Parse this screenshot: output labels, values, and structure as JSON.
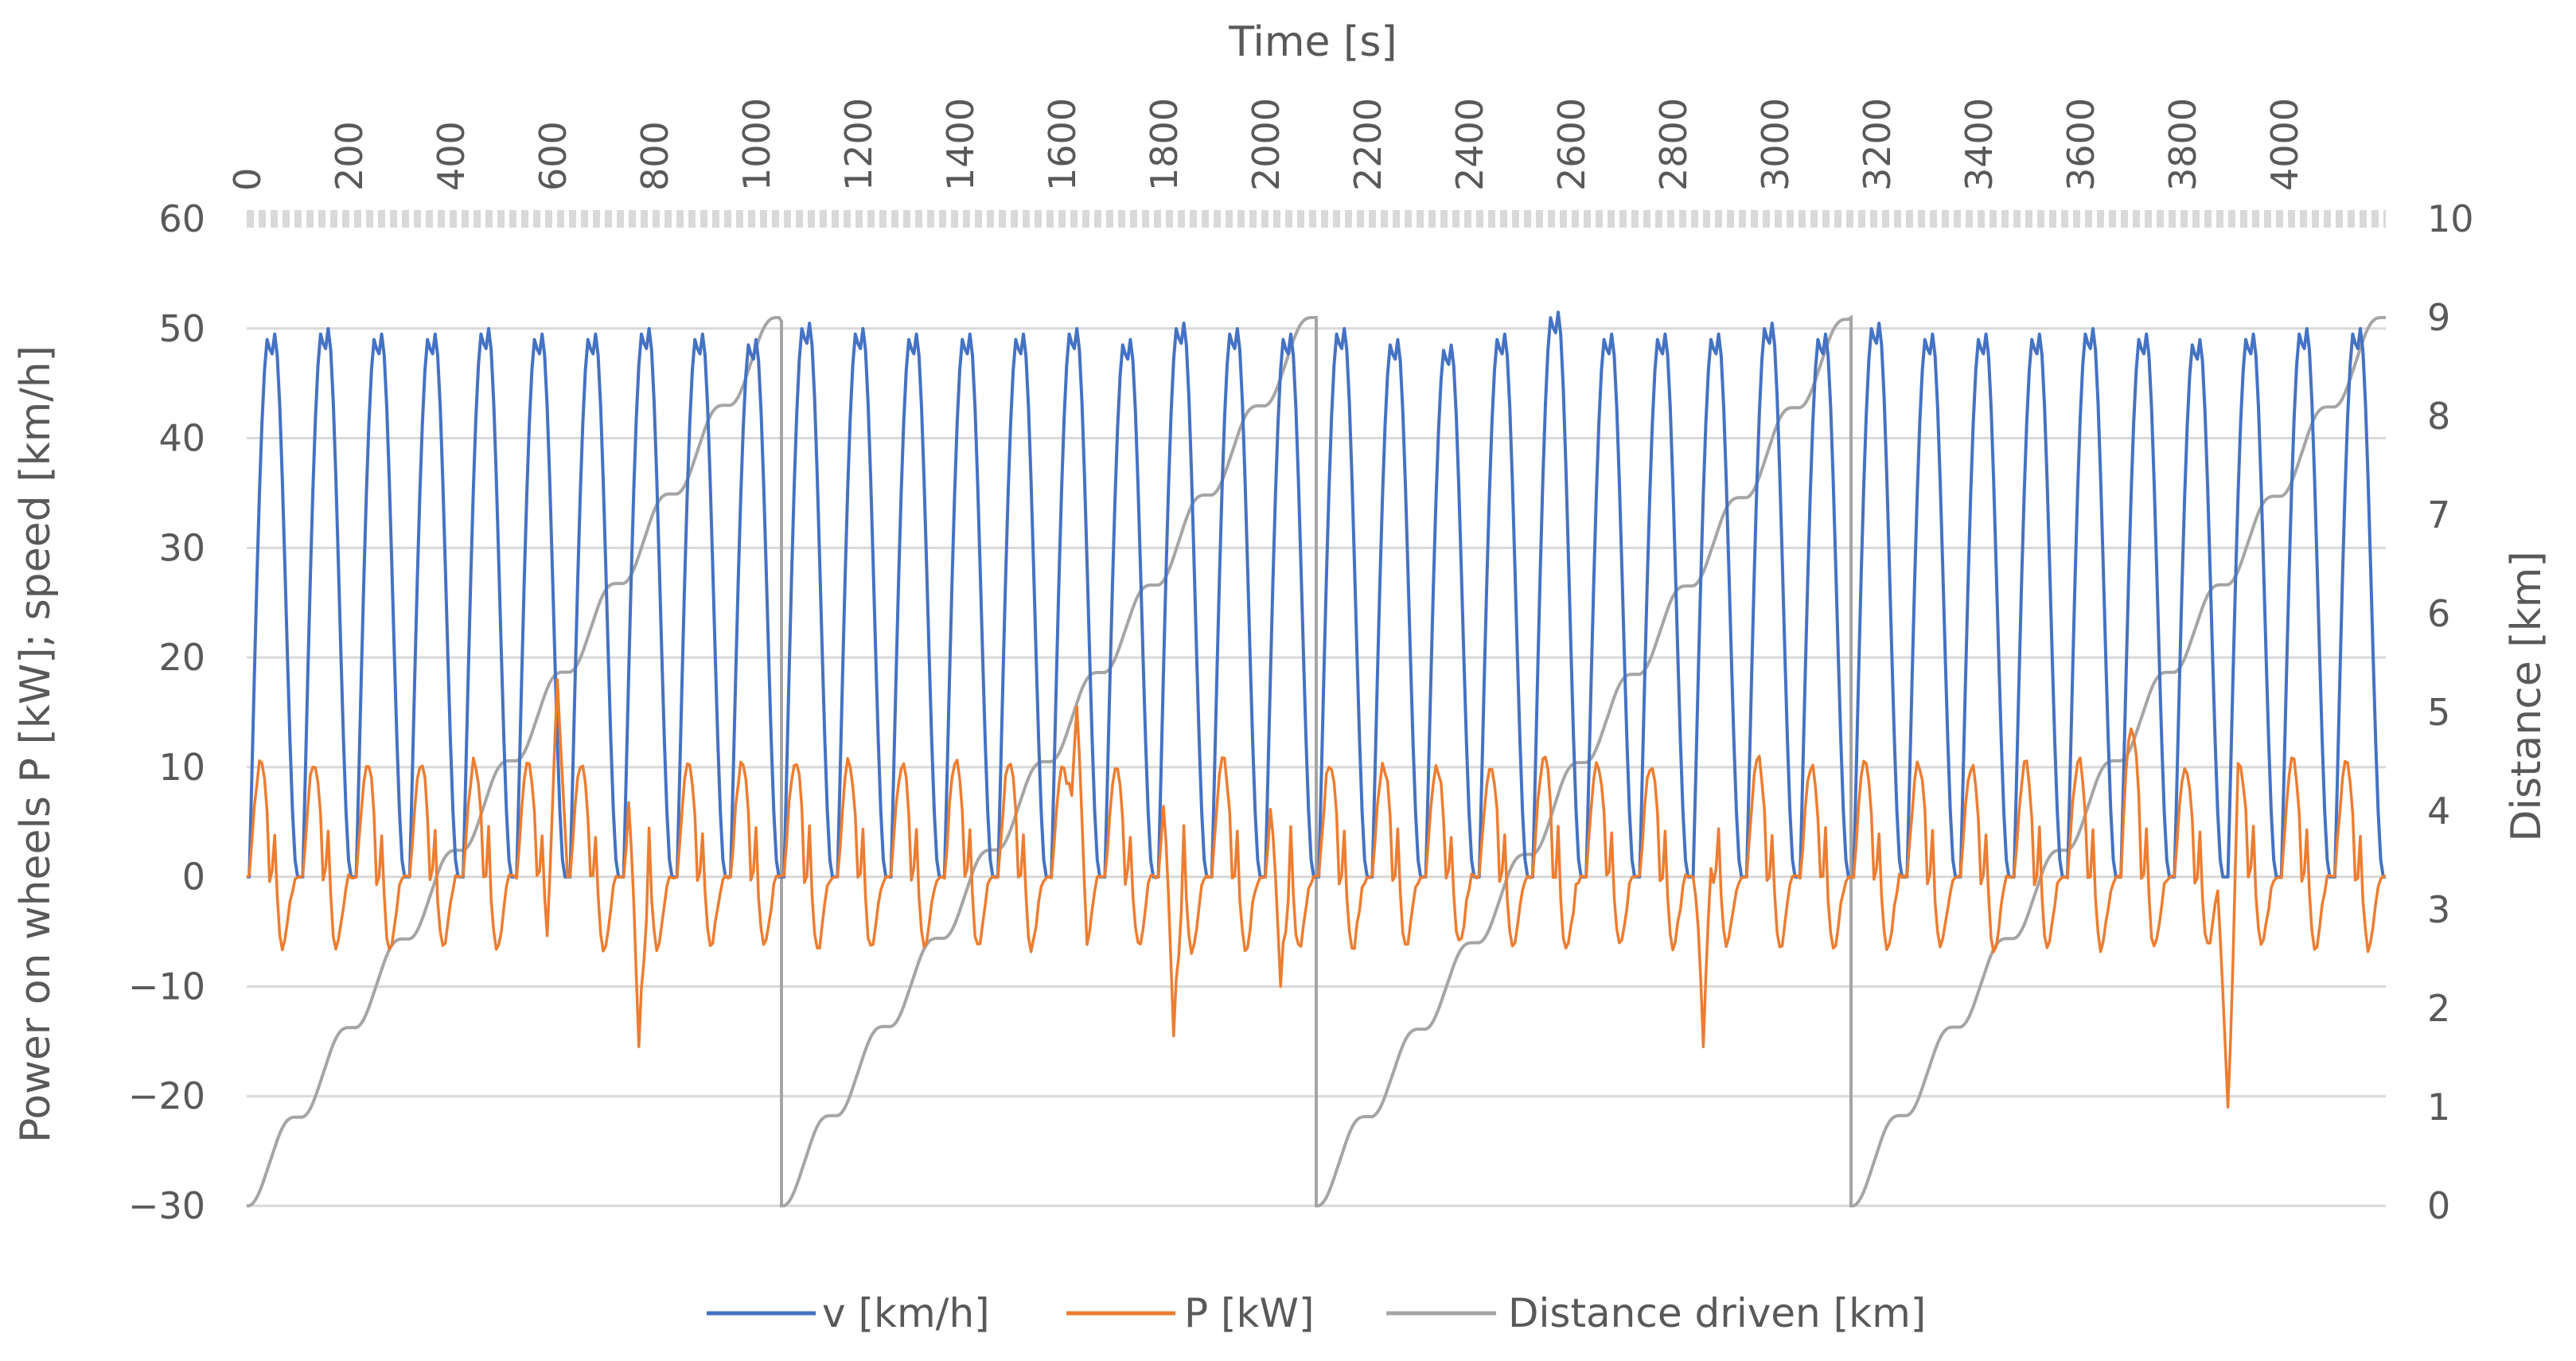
{
  "chart_data": {
    "type": "line",
    "title": "",
    "top_axis": {
      "label": "Time [s]",
      "range": [
        0,
        4200
      ],
      "ticks": [
        "0",
        "200",
        "400",
        "600",
        "800",
        "1000",
        "1200",
        "1400",
        "1600",
        "1800",
        "2000",
        "2200",
        "2400",
        "2600",
        "2800",
        "3000",
        "3200",
        "3400",
        "3600",
        "3800",
        "4000"
      ]
    },
    "y_left": {
      "label": "Power on wheels P [kW]; speed [km/h]",
      "range": [
        -30,
        60
      ],
      "ticks": [
        "60",
        "50",
        "40",
        "30",
        "20",
        "10",
        "0",
        "−10",
        "−20",
        "−30"
      ]
    },
    "y_right": {
      "label": "Distance [km]",
      "range": [
        0,
        10
      ],
      "ticks": [
        "10",
        "9",
        "8",
        "7",
        "6",
        "5",
        "4",
        "3",
        "2",
        "1",
        "0"
      ]
    },
    "grid": true,
    "legend_position": "bottom",
    "series": [
      {
        "name": "v [km/h]",
        "color": "#4472c4",
        "axis": "left",
        "cycle_length_s": 1050,
        "cycles": 4,
        "microtrips_per_cycle": 10,
        "microtrip_peaks": [
          49.5,
          50,
          49.5,
          49.5,
          50,
          49.5,
          49.5,
          50,
          49.5,
          49,
          50.5,
          50,
          49.5,
          49.5,
          49.5,
          50,
          49,
          50.5,
          50,
          49.5,
          50,
          49,
          48.5,
          49.5,
          51.5,
          49.5,
          49.5,
          49.5,
          50.5,
          49.5,
          50.5,
          49.5,
          49.5,
          49.5,
          50,
          49.5,
          49,
          49.5,
          50,
          50
        ],
        "range_kmh": [
          0,
          51.5
        ]
      },
      {
        "name": "P [kW]",
        "color": "#ed7d31",
        "axis": "left",
        "cycle_length_s": 1050,
        "cycles": 4,
        "range_kw": [
          -21,
          18
        ],
        "notable_points": [
          {
            "t": 610,
            "value": 18
          },
          {
            "t": 770,
            "value": -15.5
          },
          {
            "t": 1630,
            "value": 15.5
          },
          {
            "t": 1820,
            "value": -14.5
          },
          {
            "t": 2030,
            "value": -10
          },
          {
            "t": 2860,
            "value": -15.5
          },
          {
            "t": 3700,
            "value": 13.5
          },
          {
            "t": 3890,
            "value": -21
          }
        ]
      },
      {
        "name": "Distance driven [km]",
        "color": "#a5a5a5",
        "axis": "right",
        "cycle_length_s": 1050,
        "cycles": 4,
        "distance_per_cycle_km": 9.0,
        "resets_at_s": [
          1050,
          2100,
          3150
        ],
        "end_value_km": 9.0
      }
    ]
  }
}
